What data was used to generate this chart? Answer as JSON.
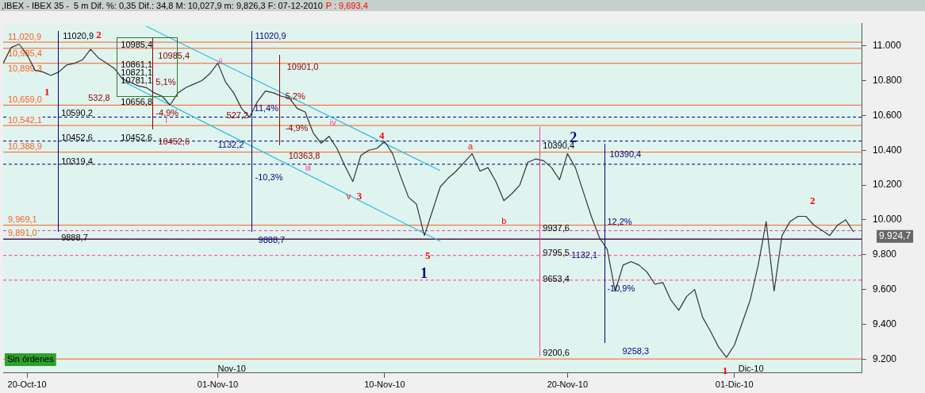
{
  "chart_data": {
    "type": "line",
    "title": ",IBEX - IBEX 35 -  5 m Dif. %: 0,35 Dif.: 34,8 M: 10,027,9 m: 9,826,3 F: 07-12-2010",
    "subtitle": "P : 9,693,4",
    "categories": [
      null,
      null,
      null,
      "20-Oct-10",
      null,
      null,
      null,
      null,
      null,
      null,
      null,
      null,
      null,
      null,
      null,
      null,
      null,
      null,
      null,
      null,
      null,
      null,
      null,
      null,
      null,
      null,
      null,
      "01-Nov-10",
      null,
      null,
      null,
      null,
      null,
      null,
      null,
      null,
      null,
      null,
      null,
      null,
      null,
      null,
      null,
      null,
      null,
      null,
      null,
      null,
      "10-Nov-10",
      null,
      null,
      null,
      null,
      null,
      null,
      null,
      null,
      null,
      null,
      null,
      null,
      null,
      null,
      null,
      null,
      null,
      null,
      null,
      null,
      null,
      null,
      "20-Nov-10",
      null,
      null,
      null,
      null,
      null,
      null,
      null,
      null,
      null,
      null,
      null,
      null,
      null,
      null,
      null,
      null,
      null,
      null,
      null,
      null,
      "01-Dic-10",
      null,
      null,
      null,
      null,
      null,
      null,
      null,
      null,
      null,
      null,
      null,
      null,
      null,
      null,
      null,
      null
    ],
    "series": [
      {
        "color": "#333333",
        "values": [
          10900,
          10990,
          11010,
          10950,
          10860,
          10850,
          10830,
          10850,
          10890,
          10900,
          10920,
          10980,
          10930,
          10900,
          10870,
          10810,
          10790,
          10770,
          10760,
          10730,
          10710,
          10660,
          10730,
          10760,
          10780,
          10800,
          10840,
          10900,
          10790,
          10730,
          10640,
          10590,
          10680,
          10740,
          10730,
          10710,
          10700,
          10640,
          10620,
          10500,
          10440,
          10480,
          10410,
          10310,
          10220,
          10370,
          10400,
          10410,
          10450,
          10380,
          10250,
          10130,
          10090,
          9910,
          10050,
          10190,
          10240,
          10280,
          10330,
          10380,
          10280,
          10300,
          10220,
          10110,
          10150,
          10200,
          10330,
          10350,
          10340,
          10300,
          10230,
          10380,
          10300,
          10160,
          10020,
          9900,
          9830,
          9590,
          9740,
          9760,
          9740,
          9700,
          9630,
          9640,
          9540,
          9480,
          9560,
          9600,
          9440,
          9360,
          9270,
          9210,
          9280,
          9410,
          9540,
          9740,
          9990,
          9590,
          9910,
          9990,
          10020,
          10020,
          9970,
          9940,
          9910,
          9970,
          10000,
          9930,
          null
        ]
      },
      {
        "type": "line",
        "color": "#33bbdd",
        "values": [
          null,
          null,
          null,
          null,
          null,
          null,
          null,
          null,
          null,
          null,
          null,
          null,
          null,
          null,
          null,
          null,
          null,
          null,
          11113,
          null,
          null,
          null,
          null,
          null,
          null,
          null,
          null,
          null,
          null,
          null,
          null,
          null,
          null,
          null,
          null,
          null,
          null,
          null,
          null,
          null,
          null,
          null,
          null,
          null,
          null,
          null,
          null,
          null,
          null,
          null,
          null,
          null,
          null,
          null,
          null,
          10282,
          null,
          null,
          null,
          null,
          null,
          null,
          null,
          null,
          null,
          null,
          null,
          null,
          null,
          null,
          null,
          null,
          null,
          null,
          null,
          null,
          null,
          null,
          null,
          null,
          null,
          null,
          null,
          null,
          null,
          null,
          null,
          null,
          null,
          null,
          null,
          null,
          null,
          null,
          null,
          null,
          null,
          null,
          null,
          null,
          null,
          null,
          null,
          null,
          null,
          null,
          null,
          null,
          null
        ]
      },
      {
        "type": "line",
        "color": "#33bbdd",
        "values": [
          null,
          null,
          null,
          null,
          null,
          null,
          null,
          null,
          null,
          null,
          null,
          null,
          null,
          null,
          null,
          10798,
          null,
          null,
          null,
          null,
          null,
          null,
          null,
          null,
          null,
          null,
          null,
          null,
          null,
          null,
          null,
          null,
          null,
          null,
          null,
          null,
          null,
          null,
          null,
          null,
          null,
          null,
          null,
          null,
          null,
          null,
          null,
          null,
          null,
          null,
          null,
          null,
          null,
          null,
          null,
          9876,
          null,
          null,
          null,
          null,
          null,
          null,
          null,
          null,
          null,
          null,
          null,
          null,
          null,
          null,
          null,
          null,
          null,
          null,
          null,
          null,
          null,
          null,
          null,
          null,
          null,
          null,
          null,
          null,
          null,
          null,
          null,
          null,
          null,
          null,
          null,
          null,
          null,
          null,
          null,
          null,
          null,
          null,
          null,
          null,
          null,
          null,
          null,
          null,
          null,
          null,
          null,
          null,
          null
        ]
      }
    ],
    "ylim": [
      9120,
      11130
    ],
    "yticks": [
      {
        "value": 9200,
        "label": "9.200"
      },
      {
        "value": 9400,
        "label": "9.400"
      },
      {
        "value": 9600,
        "label": "9.600"
      },
      {
        "value": 9800,
        "label": "9.800"
      },
      {
        "value": 10000,
        "label": "10.000"
      },
      {
        "value": 10200,
        "label": "10.200"
      },
      {
        "value": 10400,
        "label": "10.400"
      },
      {
        "value": 10600,
        "label": "10.600"
      },
      {
        "value": 10800,
        "label": "10.800"
      },
      {
        "value": 11000,
        "label": "11.000"
      }
    ],
    "grid": false,
    "legend": false,
    "marker": "none",
    "line_style": "solid",
    "ref_lines": [
      {
        "axis": "y",
        "value": 11020.9,
        "label": "11,020,9",
        "color": "#ff5a1a",
        "line_style": "solid"
      },
      {
        "axis": "y",
        "value": 10985.4,
        "label": "10,985,4",
        "color": "#ff5a1a",
        "line_style": "solid"
      },
      {
        "axis": "y",
        "value": 10899.3,
        "label": "10,899,3",
        "color": "#ff5a1a",
        "line_style": "solid"
      },
      {
        "axis": "y",
        "value": 10659.0,
        "label": "10,659,0",
        "color": "#ff5a1a",
        "line_style": "solid"
      },
      {
        "axis": "y",
        "value": 10542.1,
        "label": "10,542,1",
        "color": "#ff5a1a",
        "line_style": "solid"
      },
      {
        "axis": "y",
        "value": 10388.9,
        "label": "10,388,9",
        "color": "#ff5a1a",
        "line_style": "solid"
      },
      {
        "axis": "y",
        "value": 9969.1,
        "label": "9,969,1",
        "color": "#ff5a1a",
        "line_style": "solid"
      },
      {
        "axis": "y",
        "value": 9891.0,
        "label": "9,891,0",
        "color": "#ff5a1a",
        "line_style": "solid"
      },
      {
        "axis": "y",
        "value": 9200.6,
        "color": "#ff5a1a",
        "line_style": "solid"
      },
      {
        "axis": "y",
        "value": 10590.2,
        "color": "#000080",
        "line_style": "dashed"
      },
      {
        "axis": "y",
        "value": 10452.6,
        "color": "#000080",
        "line_style": "dashed"
      },
      {
        "axis": "y",
        "value": 10319.4,
        "color": "#000080",
        "line_style": "dashed"
      },
      {
        "axis": "y",
        "value": 9888.7,
        "color": "#000080",
        "line_style": "solid"
      },
      {
        "axis": "y",
        "value": 9937.6,
        "color": "#ff3399",
        "line_style": "dashed"
      },
      {
        "axis": "y",
        "value": 9795.5,
        "color": "#ff3399",
        "line_style": "dashed"
      },
      {
        "axis": "y",
        "value": 9653.4,
        "color": "#ff3399",
        "line_style": "dashed"
      }
    ],
    "annotations": [
      {
        "text": "11020,9",
        "y": 11020.9
      },
      "2",
      "10985,4",
      "10985,4",
      {
        "text": "11020,9",
        "y": 11020.9
      },
      "10901,0",
      "10861,1",
      "10821,1",
      "10781,1",
      "5,1%",
      "532,8",
      "10656,8",
      "1",
      "ii",
      "-4,9%",
      "i",
      "10590,2",
      "527,2",
      "11,4%",
      "5,2%",
      "-4,9%",
      "iv",
      "4",
      "10452,6",
      "10452,6",
      "10452,6",
      "1132,2",
      "10363,8",
      "iii",
      "10319,4",
      "-10,3%",
      "v",
      "3",
      "9888,7",
      "9888,7",
      "5",
      "1",
      "a",
      "b",
      {
        "text": "10390,4",
        "y": 10390.4
      },
      "2",
      "10390,4",
      "9937,6",
      "12,2%",
      "9795,5",
      "1132,1",
      "9653,4",
      "-10,9%",
      {
        "text": "9200,6",
        "y": 9200.6
      },
      "9258,3",
      "1",
      "2",
      "Nov-10",
      "Dic-10",
      "Sin órdenes",
      "9.924,7"
    ]
  }
}
